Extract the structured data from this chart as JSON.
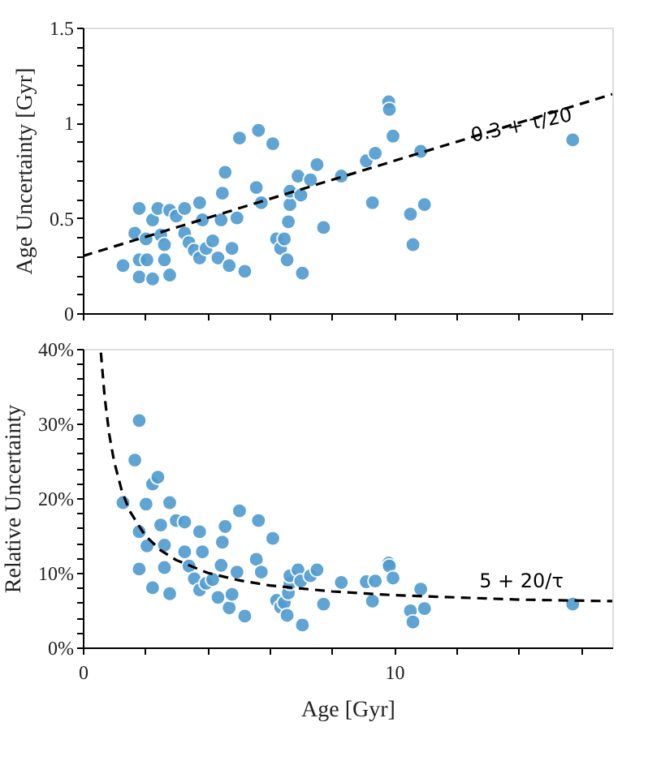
{
  "chart_data": [
    {
      "type": "scatter",
      "ylabel": "Age Uncertainty [Gyr]",
      "tick_labels": "y",
      "grid": false,
      "xlim": [
        0,
        17
      ],
      "ylim": [
        0,
        1.5
      ],
      "xticks": [
        {
          "value": 0,
          "label": null
        },
        {
          "value": 2,
          "label": null
        },
        {
          "value": 4,
          "label": null
        },
        {
          "value": 6,
          "label": null
        },
        {
          "value": 8,
          "label": null
        },
        {
          "value": 10,
          "label": null
        },
        {
          "value": 12,
          "label": null
        },
        {
          "value": 14,
          "label": null
        },
        {
          "value": 16,
          "label": null
        }
      ],
      "yticks": [
        0,
        {
          "value": 0.1,
          "label": null
        },
        {
          "value": 0.2,
          "label": null
        },
        {
          "value": 0.3,
          "label": null
        },
        {
          "value": 0.4,
          "label": null
        },
        0.5,
        {
          "value": 0.6,
          "label": null
        },
        {
          "value": 0.7,
          "label": null
        },
        {
          "value": 0.8,
          "label": null
        },
        {
          "value": 0.9,
          "label": null
        },
        1,
        {
          "value": 1.1,
          "label": null
        },
        {
          "value": 1.2,
          "label": null
        },
        {
          "value": 1.3,
          "label": null
        },
        {
          "value": 1.4,
          "label": null
        },
        1.5
      ],
      "series": [
        {
          "color": "#4f9bcf",
          "marker": "circle",
          "x": [
            1.29,
            1.81,
            1.67,
            1.81,
            1.81,
            2.03,
            2.06,
            2.24,
            2.24,
            2.41,
            2.5,
            2.62,
            2.62,
            2.79,
            2.79,
            3.0,
            3.27,
            3.27,
            3.41,
            3.58,
            3.75,
            3.75,
            3.84,
            3.96,
            4.17,
            4.34,
            4.44,
            4.48,
            4.57,
            4.7,
            4.79,
            4.95,
            5.03,
            5.2,
            5.57,
            5.64,
            5.73,
            6.1,
            6.22,
            6.35,
            6.47,
            6.56,
            6.6,
            6.65,
            6.65,
            6.91,
            7.0,
            7.05,
            7.31,
            7.52,
            7.73,
            8.3,
            9.1,
            9.3,
            9.39,
            9.82,
            9.84,
            9.96,
            10.52,
            10.6,
            10.85,
            10.97,
            15.73
          ],
          "values": [
            0.25,
            0.55,
            0.42,
            0.28,
            0.19,
            0.39,
            0.28,
            0.18,
            0.49,
            0.55,
            0.41,
            0.36,
            0.28,
            0.2,
            0.54,
            0.51,
            0.55,
            0.42,
            0.37,
            0.33,
            0.29,
            0.58,
            0.49,
            0.34,
            0.38,
            0.29,
            0.49,
            0.63,
            0.74,
            0.25,
            0.34,
            0.5,
            0.92,
            0.22,
            0.66,
            0.96,
            0.58,
            0.89,
            0.39,
            0.34,
            0.39,
            0.28,
            0.48,
            0.57,
            0.64,
            0.72,
            0.62,
            0.21,
            0.7,
            0.78,
            0.45,
            0.72,
            0.8,
            0.58,
            0.84,
            1.11,
            1.07,
            0.93,
            0.52,
            0.36,
            0.85,
            0.57,
            0.91
          ]
        },
        {
          "type": "line",
          "color": "#000000",
          "line_style": "dashed",
          "marker": "none",
          "x": [
            0,
            17
          ],
          "values": [
            0.3,
            1.15
          ]
        }
      ],
      "annotations": [
        "0.3 + τ/20"
      ]
    },
    {
      "type": "scatter",
      "xlabel": "Age [Gyr]",
      "ylabel": "Relative Uncertainty",
      "grid": false,
      "xlim": [
        0,
        17
      ],
      "ylim": [
        0,
        40
      ],
      "xticks": [
        0,
        {
          "value": 2,
          "label": null
        },
        {
          "value": 4,
          "label": null
        },
        {
          "value": 6,
          "label": null
        },
        {
          "value": 8,
          "label": null
        },
        10,
        {
          "value": 12,
          "label": null
        },
        {
          "value": 14,
          "label": null
        },
        {
          "value": 16,
          "label": null
        }
      ],
      "yticks": [
        {
          "value": 0,
          "label": "0%"
        },
        {
          "value": 2,
          "label": null
        },
        {
          "value": 4,
          "label": null
        },
        {
          "value": 6,
          "label": null
        },
        {
          "value": 8,
          "label": null
        },
        {
          "value": 10,
          "label": "10%"
        },
        {
          "value": 12,
          "label": null
        },
        {
          "value": 14,
          "label": null
        },
        {
          "value": 16,
          "label": null
        },
        {
          "value": 18,
          "label": null
        },
        {
          "value": 20,
          "label": "20%"
        },
        {
          "value": 22,
          "label": null
        },
        {
          "value": 24,
          "label": null
        },
        {
          "value": 26,
          "label": null
        },
        {
          "value": 28,
          "label": null
        },
        {
          "value": 30,
          "label": "30%"
        },
        {
          "value": 32,
          "label": null
        },
        {
          "value": 34,
          "label": null
        },
        {
          "value": 36,
          "label": null
        },
        {
          "value": 38,
          "label": null
        },
        {
          "value": 40,
          "label": "40%"
        }
      ],
      "series": [
        {
          "color": "#4f9bcf",
          "marker": "circle",
          "x": [
            1.29,
            1.81,
            1.67,
            1.81,
            1.81,
            2.03,
            2.06,
            2.24,
            2.24,
            2.41,
            2.5,
            2.62,
            2.62,
            2.79,
            2.79,
            3.0,
            3.27,
            3.27,
            3.41,
            3.58,
            3.75,
            3.75,
            3.84,
            3.96,
            4.17,
            4.34,
            4.44,
            4.48,
            4.57,
            4.7,
            4.79,
            4.95,
            5.03,
            5.2,
            5.57,
            5.64,
            5.73,
            6.1,
            6.22,
            6.35,
            6.47,
            6.56,
            6.6,
            6.65,
            6.65,
            6.91,
            7.0,
            7.05,
            7.31,
            7.52,
            7.73,
            8.3,
            9.1,
            9.3,
            9.39,
            9.82,
            9.84,
            9.96,
            10.52,
            10.6,
            10.85,
            10.97,
            15.73
          ],
          "values": [
            19.4,
            30.4,
            25.1,
            15.5,
            10.5,
            19.2,
            13.6,
            8.0,
            21.9,
            22.8,
            16.4,
            13.7,
            10.7,
            7.2,
            19.4,
            17.0,
            16.8,
            12.8,
            10.9,
            9.2,
            7.7,
            15.5,
            12.8,
            8.6,
            9.1,
            6.7,
            11.0,
            14.1,
            16.2,
            5.3,
            7.1,
            10.1,
            18.3,
            4.2,
            11.8,
            17.0,
            10.1,
            14.6,
            6.3,
            5.4,
            6.0,
            4.3,
            7.3,
            8.6,
            9.6,
            10.4,
            8.9,
            3.0,
            9.6,
            10.4,
            5.8,
            8.7,
            8.8,
            6.2,
            8.9,
            11.3,
            10.9,
            9.3,
            4.9,
            3.4,
            7.8,
            5.2,
            5.8
          ]
        },
        {
          "type": "line",
          "color": "#000000",
          "line_style": "dashed",
          "marker": "none",
          "x": [
            0.58,
            0.7,
            0.85,
            1,
            1.25,
            1.5,
            2,
            2.5,
            3,
            4,
            5,
            6,
            8,
            10,
            12,
            14,
            17
          ],
          "values": [
            39.5,
            33.6,
            28.5,
            25,
            21,
            18.3,
            15,
            13,
            11.7,
            10,
            9,
            8.3,
            7.5,
            7,
            6.7,
            6.4,
            6.2
          ]
        }
      ],
      "annotations": [
        "5 + 20/τ"
      ]
    }
  ]
}
